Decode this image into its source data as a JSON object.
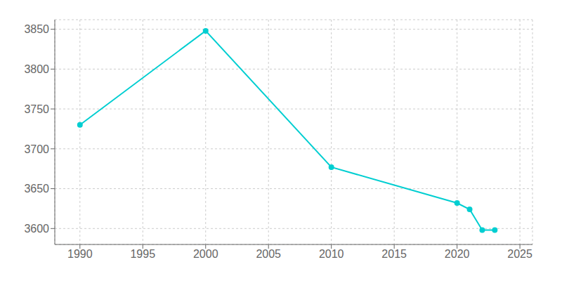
{
  "chart_data": {
    "type": "line",
    "x": [
      1990,
      2000,
      2010,
      2020,
      2021,
      2022,
      2023
    ],
    "values": [
      3730,
      3848,
      3677,
      3632,
      3624,
      3598,
      3598
    ],
    "color": "#00CED1",
    "marker": "circle",
    "xlim": [
      1988,
      2026
    ],
    "ylim": [
      3580,
      3862
    ],
    "xticks": [
      1990,
      1995,
      2000,
      2005,
      2010,
      2015,
      2020,
      2025
    ],
    "yticks": [
      3600,
      3650,
      3700,
      3750,
      3800,
      3850
    ],
    "grid": true
  }
}
